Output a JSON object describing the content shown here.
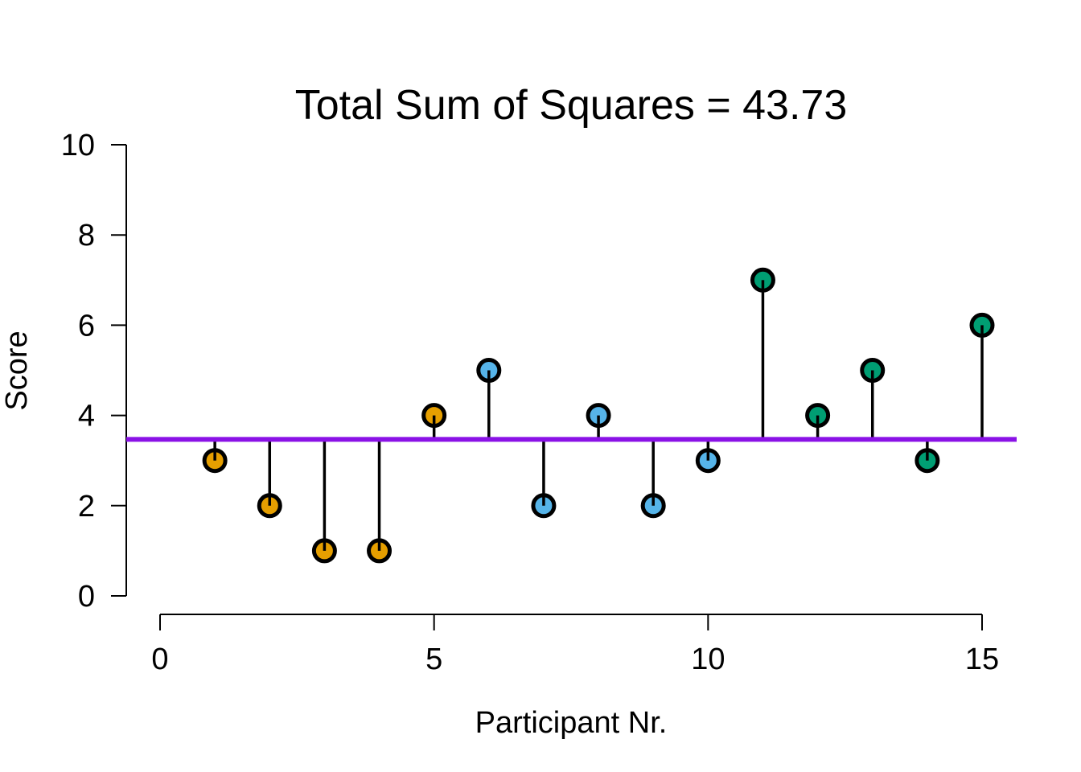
{
  "chart_data": {
    "type": "scatter",
    "title": "Total Sum of Squares = 43.73",
    "xlabel": "Participant Nr.",
    "ylabel": "Score",
    "xlim": [
      0,
      15
    ],
    "ylim": [
      0,
      10
    ],
    "x_ticks": [
      0,
      5,
      10,
      15
    ],
    "y_ticks": [
      0,
      2,
      4,
      6,
      8,
      10
    ],
    "mean": 3.47,
    "grid": false,
    "colors": {
      "mean_line": "#8a12e6",
      "group1": "#e69f00",
      "group2": "#56b4e9",
      "group3": "#009e73"
    },
    "points": [
      {
        "x": 1,
        "y": 3,
        "group": "group1"
      },
      {
        "x": 2,
        "y": 2,
        "group": "group1"
      },
      {
        "x": 3,
        "y": 1,
        "group": "group1"
      },
      {
        "x": 4,
        "y": 1,
        "group": "group1"
      },
      {
        "x": 5,
        "y": 4,
        "group": "group1"
      },
      {
        "x": 6,
        "y": 5,
        "group": "group2"
      },
      {
        "x": 7,
        "y": 2,
        "group": "group2"
      },
      {
        "x": 8,
        "y": 4,
        "group": "group2"
      },
      {
        "x": 9,
        "y": 2,
        "group": "group2"
      },
      {
        "x": 10,
        "y": 3,
        "group": "group2"
      },
      {
        "x": 11,
        "y": 7,
        "group": "group3"
      },
      {
        "x": 12,
        "y": 4,
        "group": "group3"
      },
      {
        "x": 13,
        "y": 5,
        "group": "group3"
      },
      {
        "x": 14,
        "y": 3,
        "group": "group3"
      },
      {
        "x": 15,
        "y": 6,
        "group": "group3"
      }
    ]
  }
}
